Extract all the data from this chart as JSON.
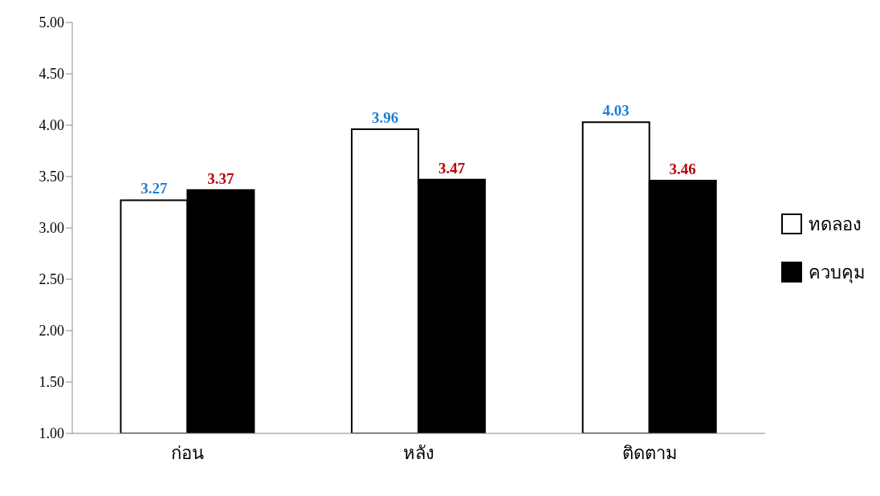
{
  "chart_data": {
    "type": "bar",
    "categories": [
      "ก่อน",
      "หลัง",
      "ติดตาม"
    ],
    "series": [
      {
        "name": "ทดลอง",
        "color": "#ffffff",
        "values": [
          3.27,
          3.96,
          4.03
        ]
      },
      {
        "name": "ควบคุม",
        "color": "#000000",
        "values": [
          3.37,
          3.47,
          3.46
        ]
      }
    ],
    "ylim": [
      1,
      5
    ],
    "yticks": [
      {
        "value": 1,
        "label": "1.00"
      },
      {
        "value": 1.5,
        "label": "1.50"
      },
      {
        "value": 2,
        "label": "2.00"
      },
      {
        "value": 2.5,
        "label": "2.50"
      },
      {
        "value": 3,
        "label": "3.00"
      },
      {
        "value": 3.5,
        "label": "3.50"
      },
      {
        "value": 4,
        "label": "4.00"
      },
      {
        "value": 4.5,
        "label": "4.50"
      },
      {
        "value": 5,
        "label": "5.00"
      }
    ],
    "data_labels": true,
    "grid": false,
    "legend": "right"
  }
}
